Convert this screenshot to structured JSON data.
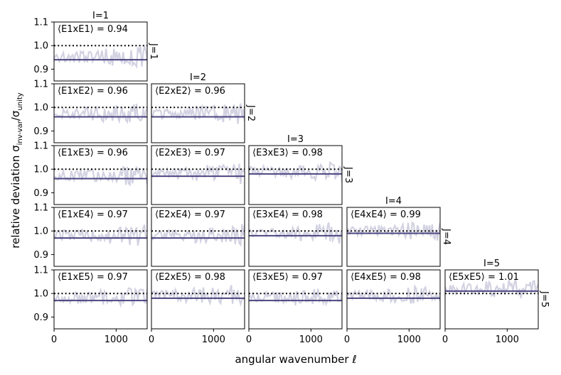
{
  "chart_data": {
    "type": "line",
    "xlabel": "angular wavenumber ℓ",
    "ylabel_main": "relative deviation σ",
    "ylabel_sub": "inv-var",
    "ylabel_sep": "/σ",
    "ylabel_sub2": "unity",
    "xlim": [
      0,
      1500
    ],
    "ylim": [
      0.85,
      1.1
    ],
    "x_ticks": [
      0,
      1000
    ],
    "y_ticks": [
      1.1,
      1.0,
      0.9
    ],
    "reference_line": 1.0,
    "colors": {
      "noisy": "#d3d2e2",
      "mean": "#4b4580",
      "reference": "#000000"
    },
    "column_titles": [
      "I=1",
      "I=2",
      "I=3",
      "I=4",
      "I=5"
    ],
    "row_titles": [
      "J=1",
      "J=2",
      "J=3",
      "J=4",
      "J=5"
    ],
    "panels": [
      {
        "i": 1,
        "j": 1,
        "label": "⟨E1xE1⟩ = 0.94",
        "mean": 0.94
      },
      {
        "i": 1,
        "j": 2,
        "label": "⟨E1xE2⟩ = 0.96",
        "mean": 0.96
      },
      {
        "i": 2,
        "j": 2,
        "label": "⟨E2xE2⟩ = 0.96",
        "mean": 0.96
      },
      {
        "i": 1,
        "j": 3,
        "label": "⟨E1xE3⟩ = 0.96",
        "mean": 0.96
      },
      {
        "i": 2,
        "j": 3,
        "label": "⟨E2xE3⟩ = 0.97",
        "mean": 0.97
      },
      {
        "i": 3,
        "j": 3,
        "label": "⟨E3xE3⟩ = 0.98",
        "mean": 0.98
      },
      {
        "i": 1,
        "j": 4,
        "label": "⟨E1xE4⟩ = 0.97",
        "mean": 0.97
      },
      {
        "i": 2,
        "j": 4,
        "label": "⟨E2xE4⟩ = 0.97",
        "mean": 0.97
      },
      {
        "i": 3,
        "j": 4,
        "label": "⟨E3xE4⟩ = 0.98",
        "mean": 0.98
      },
      {
        "i": 4,
        "j": 4,
        "label": "⟨E4xE4⟩ = 0.99",
        "mean": 0.99
      },
      {
        "i": 1,
        "j": 5,
        "label": "⟨E1xE5⟩ = 0.97",
        "mean": 0.97
      },
      {
        "i": 2,
        "j": 5,
        "label": "⟨E2xE5⟩ = 0.98",
        "mean": 0.98
      },
      {
        "i": 3,
        "j": 5,
        "label": "⟨E3xE5⟩ = 0.97",
        "mean": 0.97
      },
      {
        "i": 4,
        "j": 5,
        "label": "⟨E4xE5⟩ = 0.98",
        "mean": 0.98
      },
      {
        "i": 5,
        "j": 5,
        "label": "⟨E5xE5⟩ = 1.01",
        "mean": 1.01
      }
    ]
  }
}
